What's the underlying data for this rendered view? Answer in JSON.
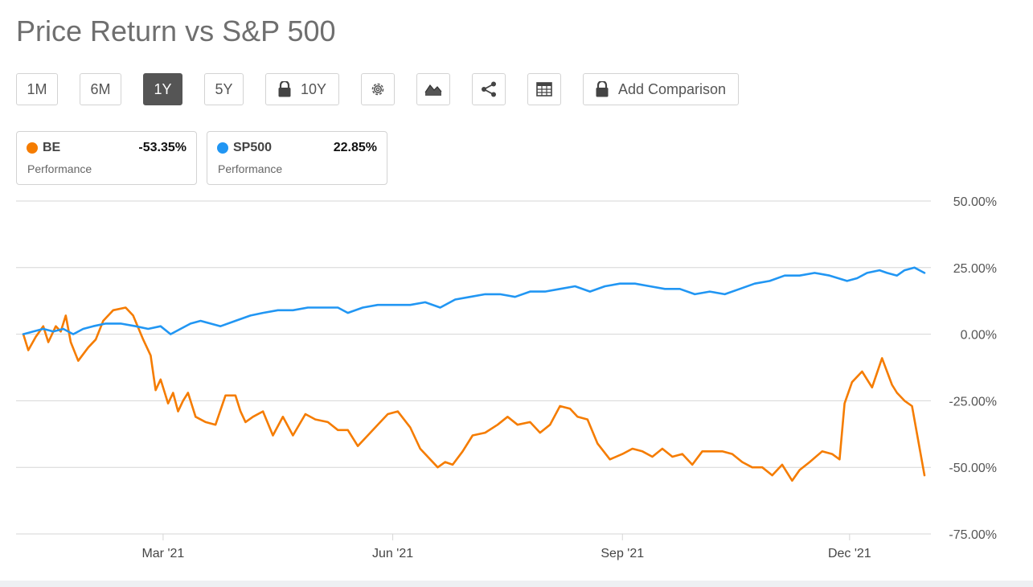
{
  "title": "Price Return vs S&P 500",
  "toolbar": {
    "range_1m": "1M",
    "range_6m": "6M",
    "range_1y": "1Y",
    "range_5y": "5Y",
    "range_10y": "10Y",
    "add_comparison": "Add Comparison"
  },
  "cards": [
    {
      "symbol": "BE",
      "change": "-53.35%",
      "caption": "Performance",
      "color": "#f57c00"
    },
    {
      "symbol": "SP500",
      "change": "22.85%",
      "caption": "Performance",
      "color": "#2196f3"
    }
  ],
  "chart_data": {
    "type": "line",
    "x_ticks": [
      "Mar '21",
      "Jun '21",
      "Sep '21",
      "Dec '21"
    ],
    "y_ticks": [
      "50.00%",
      "25.00%",
      "0.00%",
      "-25.00%",
      "-50.00%",
      "-75.00%"
    ],
    "ylim": [
      -75,
      50
    ],
    "grid": true,
    "x_range": [
      "2021-01-04",
      "2021-12-31"
    ],
    "series": [
      {
        "name": "BE",
        "color": "#f57c00",
        "points": [
          [
            "2021-01-04",
            0
          ],
          [
            "2021-01-06",
            -6
          ],
          [
            "2021-01-09",
            -1
          ],
          [
            "2021-01-12",
            3
          ],
          [
            "2021-01-14",
            -3
          ],
          [
            "2021-01-17",
            3
          ],
          [
            "2021-01-19",
            1
          ],
          [
            "2021-01-21",
            7
          ],
          [
            "2021-01-23",
            -3
          ],
          [
            "2021-01-26",
            -10
          ],
          [
            "2021-01-30",
            -5
          ],
          [
            "2021-02-02",
            -2
          ],
          [
            "2021-02-05",
            5
          ],
          [
            "2021-02-09",
            9
          ],
          [
            "2021-02-14",
            10
          ],
          [
            "2021-02-17",
            7
          ],
          [
            "2021-02-21",
            -2
          ],
          [
            "2021-02-24",
            -8
          ],
          [
            "2021-02-26",
            -21
          ],
          [
            "2021-02-28",
            -17
          ],
          [
            "2021-03-03",
            -26
          ],
          [
            "2021-03-05",
            -22
          ],
          [
            "2021-03-07",
            -29
          ],
          [
            "2021-03-09",
            -25
          ],
          [
            "2021-03-11",
            -22
          ],
          [
            "2021-03-14",
            -31
          ],
          [
            "2021-03-18",
            -33
          ],
          [
            "2021-03-22",
            -34
          ],
          [
            "2021-03-26",
            -23
          ],
          [
            "2021-03-30",
            -23
          ],
          [
            "2021-04-01",
            -29
          ],
          [
            "2021-04-03",
            -33
          ],
          [
            "2021-04-06",
            -31
          ],
          [
            "2021-04-10",
            -29
          ],
          [
            "2021-04-14",
            -38
          ],
          [
            "2021-04-18",
            -31
          ],
          [
            "2021-04-22",
            -38
          ],
          [
            "2021-04-27",
            -30
          ],
          [
            "2021-05-01",
            -32
          ],
          [
            "2021-05-06",
            -33
          ],
          [
            "2021-05-10",
            -36
          ],
          [
            "2021-05-14",
            -36
          ],
          [
            "2021-05-18",
            -42
          ],
          [
            "2021-05-22",
            -38
          ],
          [
            "2021-05-26",
            -34
          ],
          [
            "2021-05-30",
            -30
          ],
          [
            "2021-06-03",
            -29
          ],
          [
            "2021-06-08",
            -35
          ],
          [
            "2021-06-12",
            -43
          ],
          [
            "2021-06-16",
            -47
          ],
          [
            "2021-06-19",
            -50
          ],
          [
            "2021-06-22",
            -48
          ],
          [
            "2021-06-25",
            -49
          ],
          [
            "2021-06-29",
            -44
          ],
          [
            "2021-07-03",
            -38
          ],
          [
            "2021-07-08",
            -37
          ],
          [
            "2021-07-13",
            -34
          ],
          [
            "2021-07-17",
            -31
          ],
          [
            "2021-07-21",
            -34
          ],
          [
            "2021-07-26",
            -33
          ],
          [
            "2021-07-30",
            -37
          ],
          [
            "2021-08-03",
            -34
          ],
          [
            "2021-08-07",
            -27
          ],
          [
            "2021-08-11",
            -28
          ],
          [
            "2021-08-14",
            -31
          ],
          [
            "2021-08-18",
            -32
          ],
          [
            "2021-08-22",
            -41
          ],
          [
            "2021-08-27",
            -47
          ],
          [
            "2021-09-01",
            -45
          ],
          [
            "2021-09-05",
            -43
          ],
          [
            "2021-09-09",
            -44
          ],
          [
            "2021-09-13",
            -46
          ],
          [
            "2021-09-17",
            -43
          ],
          [
            "2021-09-21",
            -46
          ],
          [
            "2021-09-25",
            -45
          ],
          [
            "2021-09-29",
            -49
          ],
          [
            "2021-10-03",
            -44
          ],
          [
            "2021-10-07",
            -44
          ],
          [
            "2021-10-11",
            -44
          ],
          [
            "2021-10-15",
            -45
          ],
          [
            "2021-10-19",
            -48
          ],
          [
            "2021-10-23",
            -50
          ],
          [
            "2021-10-27",
            -50
          ],
          [
            "2021-10-31",
            -53
          ],
          [
            "2021-11-04",
            -49
          ],
          [
            "2021-11-08",
            -55
          ],
          [
            "2021-11-11",
            -51
          ],
          [
            "2021-11-15",
            -48
          ],
          [
            "2021-11-20",
            -44
          ],
          [
            "2021-11-24",
            -45
          ],
          [
            "2021-11-27",
            -47
          ],
          [
            "2021-11-29",
            -26
          ],
          [
            "2021-12-02",
            -18
          ],
          [
            "2021-12-06",
            -14
          ],
          [
            "2021-12-10",
            -20
          ],
          [
            "2021-12-14",
            -9
          ],
          [
            "2021-12-18",
            -19
          ],
          [
            "2021-12-20",
            -22
          ],
          [
            "2021-12-23",
            -25
          ],
          [
            "2021-12-26",
            -27
          ],
          [
            "2021-12-31",
            -53
          ]
        ]
      },
      {
        "name": "SP500",
        "color": "#2196f3",
        "points": [
          [
            "2021-01-04",
            0
          ],
          [
            "2021-01-08",
            1
          ],
          [
            "2021-01-12",
            2
          ],
          [
            "2021-01-16",
            1
          ],
          [
            "2021-01-20",
            2
          ],
          [
            "2021-01-24",
            0
          ],
          [
            "2021-01-28",
            2
          ],
          [
            "2021-02-01",
            3
          ],
          [
            "2021-02-06",
            4
          ],
          [
            "2021-02-12",
            4
          ],
          [
            "2021-02-18",
            3
          ],
          [
            "2021-02-23",
            2
          ],
          [
            "2021-02-28",
            3
          ],
          [
            "2021-03-04",
            0
          ],
          [
            "2021-03-08",
            2
          ],
          [
            "2021-03-12",
            4
          ],
          [
            "2021-03-16",
            5
          ],
          [
            "2021-03-20",
            4
          ],
          [
            "2021-03-24",
            3
          ],
          [
            "2021-03-30",
            5
          ],
          [
            "2021-04-05",
            7
          ],
          [
            "2021-04-10",
            8
          ],
          [
            "2021-04-16",
            9
          ],
          [
            "2021-04-22",
            9
          ],
          [
            "2021-04-28",
            10
          ],
          [
            "2021-05-04",
            10
          ],
          [
            "2021-05-10",
            10
          ],
          [
            "2021-05-14",
            8
          ],
          [
            "2021-05-20",
            10
          ],
          [
            "2021-05-26",
            11
          ],
          [
            "2021-06-02",
            11
          ],
          [
            "2021-06-08",
            11
          ],
          [
            "2021-06-14",
            12
          ],
          [
            "2021-06-20",
            10
          ],
          [
            "2021-06-26",
            13
          ],
          [
            "2021-07-02",
            14
          ],
          [
            "2021-07-08",
            15
          ],
          [
            "2021-07-14",
            15
          ],
          [
            "2021-07-20",
            14
          ],
          [
            "2021-07-26",
            16
          ],
          [
            "2021-08-01",
            16
          ],
          [
            "2021-08-07",
            17
          ],
          [
            "2021-08-13",
            18
          ],
          [
            "2021-08-19",
            16
          ],
          [
            "2021-08-25",
            18
          ],
          [
            "2021-08-31",
            19
          ],
          [
            "2021-09-06",
            19
          ],
          [
            "2021-09-12",
            18
          ],
          [
            "2021-09-18",
            17
          ],
          [
            "2021-09-24",
            17
          ],
          [
            "2021-09-30",
            15
          ],
          [
            "2021-10-06",
            16
          ],
          [
            "2021-10-12",
            15
          ],
          [
            "2021-10-18",
            17
          ],
          [
            "2021-10-24",
            19
          ],
          [
            "2021-10-30",
            20
          ],
          [
            "2021-11-05",
            22
          ],
          [
            "2021-11-11",
            22
          ],
          [
            "2021-11-17",
            23
          ],
          [
            "2021-11-23",
            22
          ],
          [
            "2021-11-30",
            20
          ],
          [
            "2021-12-04",
            21
          ],
          [
            "2021-12-08",
            23
          ],
          [
            "2021-12-13",
            24
          ],
          [
            "2021-12-16",
            23
          ],
          [
            "2021-12-20",
            22
          ],
          [
            "2021-12-23",
            24
          ],
          [
            "2021-12-27",
            25
          ],
          [
            "2021-12-29",
            24
          ],
          [
            "2021-12-31",
            23
          ]
        ]
      }
    ]
  }
}
